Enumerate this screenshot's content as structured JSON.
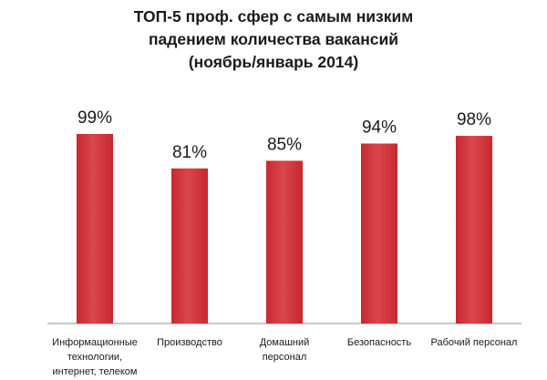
{
  "chart_data": {
    "type": "bar",
    "title_lines": [
      "ТОП-5 проф. сфер с самым низким",
      "падением количества вакансий",
      "(ноябрь/январь 2014)"
    ],
    "categories": [
      [
        "Информационные",
        "технологии,",
        "интернет, телеком"
      ],
      [
        "Производство"
      ],
      [
        "Домашний",
        "персонал"
      ],
      [
        "Безопасность"
      ],
      [
        "Рабочий персонал"
      ]
    ],
    "values": [
      99,
      81,
      85,
      94,
      98
    ],
    "data_labels": [
      "99%",
      "81%",
      "85%",
      "94%",
      "98%"
    ],
    "ylim": [
      0,
      100
    ],
    "grid": false,
    "legend": "none",
    "bar_color": "#c8282e",
    "bar_color_light": "#d9474c"
  }
}
